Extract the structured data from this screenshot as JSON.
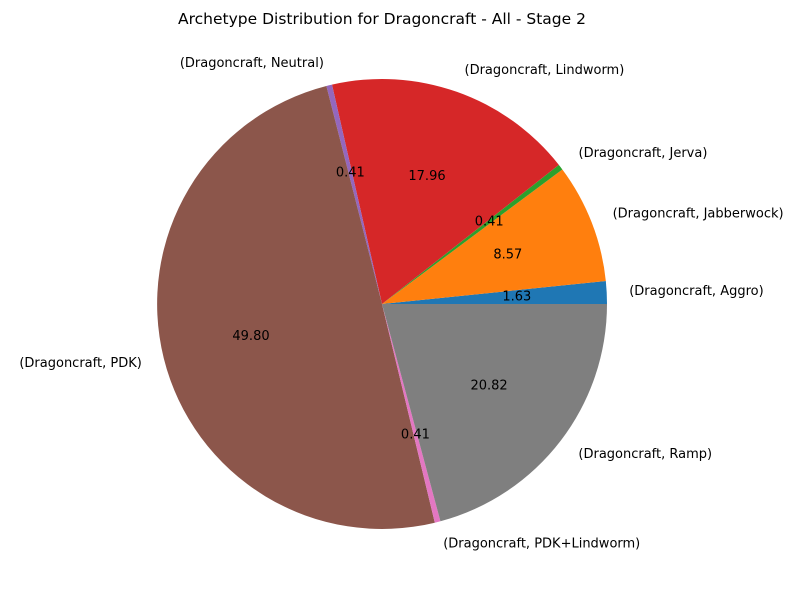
{
  "chart_data": {
    "type": "pie",
    "title": "Archetype Distribution for Dragoncraft - All - Stage 2",
    "slices": [
      {
        "label": "(Dragoncraft, Aggro)",
        "value": 1.63,
        "value_label": "1.63",
        "color": "#1f77b4"
      },
      {
        "label": "(Dragoncraft, Jabberwock)",
        "value": 8.57,
        "value_label": "8.57",
        "color": "#ff7f0e"
      },
      {
        "label": "(Dragoncraft, Jerva)",
        "value": 0.41,
        "value_label": "0.41",
        "color": "#2ca02c"
      },
      {
        "label": "(Dragoncraft, Lindworm)",
        "value": 17.96,
        "value_label": "17.96",
        "color": "#d62728"
      },
      {
        "label": "(Dragoncraft, Neutral)",
        "value": 0.41,
        "value_label": "0.41",
        "color": "#9467bd"
      },
      {
        "label": "(Dragoncraft, PDK)",
        "value": 49.8,
        "value_label": "49.80",
        "color": "#8c564b"
      },
      {
        "label": "(Dragoncraft, PDK+Lindworm)",
        "value": 0.41,
        "value_label": "0.41",
        "color": "#e377c2"
      },
      {
        "label": "(Dragoncraft, Ramp)",
        "value": 20.82,
        "value_label": "20.82",
        "color": "#7f7f7f"
      }
    ],
    "start_angle_deg": 0,
    "direction": "counterclockwise"
  }
}
